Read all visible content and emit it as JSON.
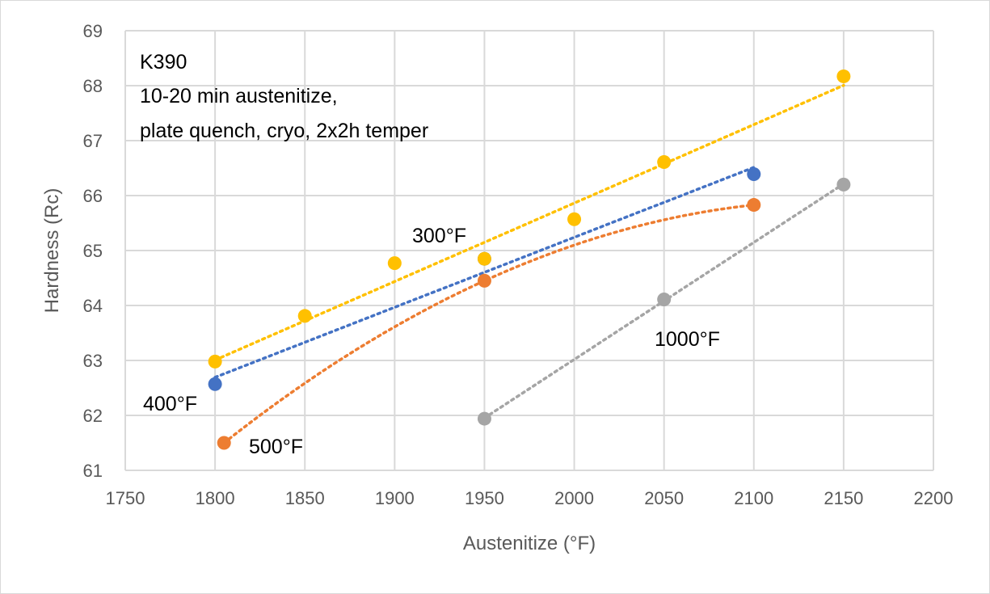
{
  "chart_data": {
    "type": "scatter",
    "title": "",
    "xlabel": "Austenitize (°F)",
    "ylabel": "Hardness (Rc)",
    "xlim": [
      1750,
      2200
    ],
    "ylim": [
      61,
      69
    ],
    "xticks": [
      1750,
      1800,
      1850,
      1900,
      1950,
      2000,
      2050,
      2100,
      2150,
      2200
    ],
    "yticks": [
      61,
      62,
      63,
      64,
      65,
      66,
      67,
      68,
      69
    ],
    "grid": true,
    "annotations": [
      "K390",
      "10-20 min austenitize,",
      "plate quench, cryo, 2x2h temper"
    ],
    "series": [
      {
        "name": "300°F",
        "color": "#FFC000",
        "trend": "linear",
        "x": [
          1800,
          1850,
          1900,
          1950,
          2000,
          2050,
          2150
        ],
        "y": [
          62.98,
          63.81,
          64.77,
          64.85,
          65.57,
          66.61,
          68.17
        ]
      },
      {
        "name": "400°F",
        "color": "#4472C4",
        "trend": "linear",
        "x": [
          1800,
          1950,
          2100
        ],
        "y": [
          62.57,
          64.85,
          66.39
        ]
      },
      {
        "name": "500°F",
        "color": "#ED7D31",
        "trend": "poly2",
        "x": [
          1805,
          1950,
          2100
        ],
        "y": [
          61.5,
          64.45,
          65.83
        ]
      },
      {
        "name": "1000°F",
        "color": "#A5A5A5",
        "trend": "linear",
        "x": [
          1950,
          2050,
          2150
        ],
        "y": [
          61.94,
          64.11,
          66.2
        ]
      }
    ]
  }
}
